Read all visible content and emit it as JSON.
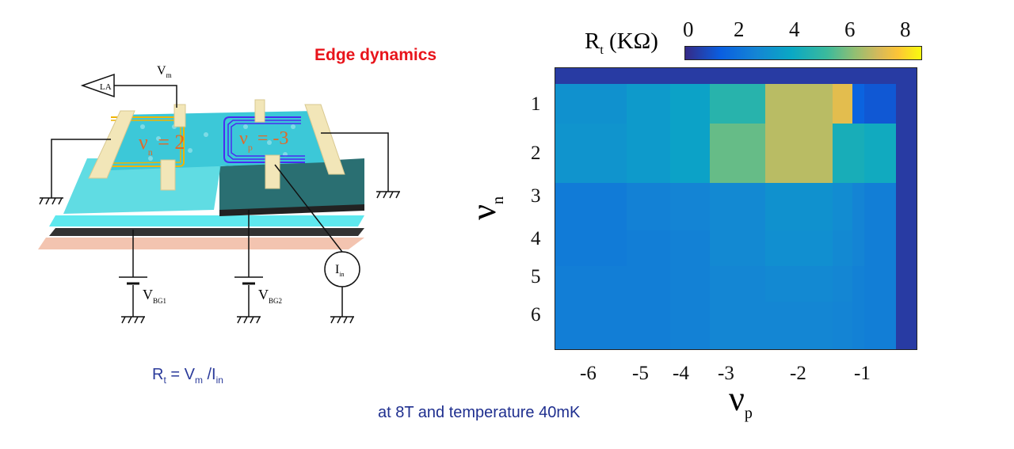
{
  "slide": {
    "title": "Edge dynamics",
    "formula": {
      "lhs": "R",
      "lhs_sub": "t",
      "eq": " = V",
      "v_sub": "m",
      "div": " /I",
      "i_sub": "in"
    },
    "conditions": "at 8T and  temperature 40mK"
  },
  "diagram": {
    "lock_in_label": "LA",
    "vm_label": "V",
    "vm_sub": "m",
    "vbg1_label": "V",
    "vbg1_sub": "BG1",
    "vbg2_label": "V",
    "vbg2_sub": "BG2",
    "iin_label": "I",
    "iin_sub": "in",
    "region_n_label": "ν",
    "region_n_sub": "n",
    "region_n_value": " = 2",
    "region_p_label": "ν",
    "region_p_sub": "p",
    "region_p_value": " = -3",
    "colors": {
      "electron_edge": "#f0b400",
      "hole_edge": "#4a2cf0",
      "graphene": "#3cc8d8",
      "contact": "#f2e6b8"
    }
  },
  "chart_data": {
    "type": "heatmap",
    "title": "",
    "xlabel": "ν",
    "xlabel_sub": "p",
    "ylabel": "ν",
    "ylabel_sub": "n",
    "colorbar": {
      "label": "R",
      "label_sub": "t",
      "unit": "(KΩ)",
      "ticks": [
        "0",
        "2",
        "4",
        "6",
        "8"
      ],
      "range": [
        0,
        8.5
      ],
      "colormap": "parula"
    },
    "x_ticks": [
      "-6",
      "-5",
      "-4",
      "-3",
      "-2",
      "-1"
    ],
    "y_ticks": [
      "1",
      "2",
      "3",
      "4",
      "5",
      "6"
    ],
    "z_kohm": [
      [
        0.4,
        0.4,
        0.4,
        0.4,
        0.4,
        0.4,
        0.4,
        0.4,
        0.4
      ],
      [
        3.0,
        3.3,
        3.6,
        4.6,
        6.6,
        7.2,
        1.4,
        1.1,
        0.4
      ],
      [
        3.1,
        3.3,
        3.6,
        5.6,
        6.6,
        4.2,
        4.2,
        4.0,
        0.4
      ],
      [
        2.2,
        2.4,
        2.5,
        2.7,
        3.0,
        2.8,
        2.5,
        2.3,
        0.4
      ],
      [
        2.2,
        2.3,
        2.4,
        2.7,
        2.9,
        2.7,
        2.5,
        2.3,
        0.4
      ],
      [
        2.3,
        2.3,
        2.4,
        2.6,
        2.7,
        2.6,
        2.4,
        2.3,
        0.4
      ],
      [
        2.3,
        2.3,
        2.4,
        2.6,
        2.6,
        2.5,
        2.4,
        2.3,
        0.4
      ]
    ]
  }
}
